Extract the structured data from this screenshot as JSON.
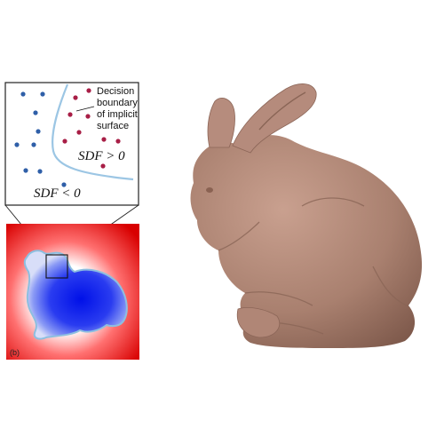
{
  "inset": {
    "annotation_lines": [
      "Decision",
      "boundary",
      "of implicit",
      "surface"
    ],
    "region_positive": "SDF > 0",
    "region_negative": "SDF < 0"
  },
  "sdf_panel": {
    "tag": "(b)"
  },
  "colors": {
    "negative_points": "#2f5fa8",
    "positive_points": "#a81e46",
    "boundary": "#8dbfe0",
    "sdf_outside": "#e60000",
    "sdf_inside": "#0a14e6",
    "bunny": "#b48a7c"
  },
  "icons": {
    "bunny": "stanford-bunny-render"
  }
}
